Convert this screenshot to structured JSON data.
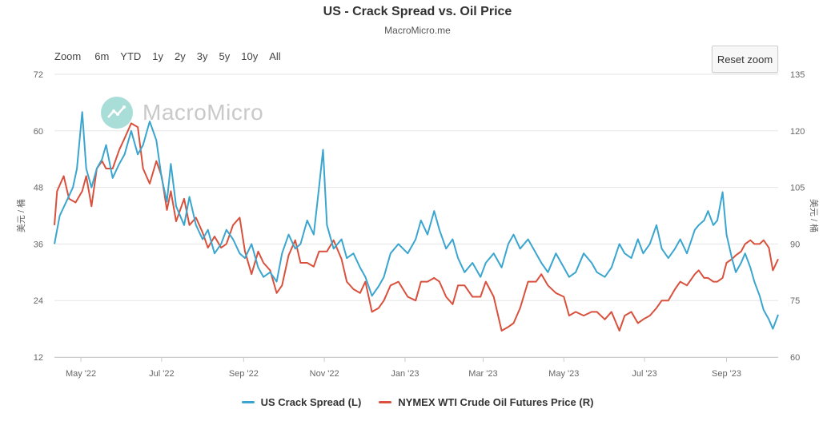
{
  "title": "US - Crack Spread vs. Oil Price",
  "subtitle": "MacroMicro.me",
  "watermark": "MacroMicro",
  "range_selector": [
    "Zoom",
    "6m",
    "YTD",
    "1y",
    "2y",
    "3y",
    "5y",
    "10y",
    "All"
  ],
  "reset_zoom_label": "Reset zoom",
  "colors": {
    "crack": "#3aa6cf",
    "wti": "#d9503c",
    "grid": "#e6e6e6"
  },
  "chart_data": {
    "type": "line",
    "title": "US - Crack Spread vs. Oil Price",
    "subtitle": "MacroMicro.me",
    "x_range": [
      "2022-04-11",
      "2023-10-10"
    ],
    "x_ticks": [
      {
        "date": "2022-05-01",
        "label": "May '22"
      },
      {
        "date": "2022-07-01",
        "label": "Jul '22"
      },
      {
        "date": "2022-09-01",
        "label": "Sep '22"
      },
      {
        "date": "2022-11-01",
        "label": "Nov '22"
      },
      {
        "date": "2023-01-01",
        "label": "Jan '23"
      },
      {
        "date": "2023-03-01",
        "label": "Mar '23"
      },
      {
        "date": "2023-05-01",
        "label": "May '23"
      },
      {
        "date": "2023-07-01",
        "label": "Jul '23"
      },
      {
        "date": "2023-09-01",
        "label": "Sep '23"
      }
    ],
    "y_left": {
      "label": "美元 / 桶",
      "min": 12,
      "max": 72,
      "ticks": [
        12,
        24,
        36,
        48,
        60,
        72
      ]
    },
    "y_right": {
      "label": "美元 / 桶",
      "min": 60,
      "max": 135,
      "ticks": [
        60,
        75,
        90,
        105,
        120,
        135
      ]
    },
    "grid": true,
    "legend_position": "bottom",
    "series": [
      {
        "name": "US Crack Spread (L)",
        "axis": "left",
        "color": "#3aa6cf",
        "points": [
          [
            "2022-04-11",
            36
          ],
          [
            "2022-04-15",
            42
          ],
          [
            "2022-04-20",
            45
          ],
          [
            "2022-04-25",
            48
          ],
          [
            "2022-04-28",
            52
          ],
          [
            "2022-05-02",
            64
          ],
          [
            "2022-05-05",
            52
          ],
          [
            "2022-05-09",
            48
          ],
          [
            "2022-05-13",
            52
          ],
          [
            "2022-05-17",
            54
          ],
          [
            "2022-05-20",
            57
          ],
          [
            "2022-05-25",
            50
          ],
          [
            "2022-05-30",
            53
          ],
          [
            "2022-06-03",
            55
          ],
          [
            "2022-06-08",
            60
          ],
          [
            "2022-06-13",
            55
          ],
          [
            "2022-06-17",
            57
          ],
          [
            "2022-06-22",
            62
          ],
          [
            "2022-06-27",
            58
          ],
          [
            "2022-07-01",
            50
          ],
          [
            "2022-07-05",
            45
          ],
          [
            "2022-07-08",
            53
          ],
          [
            "2022-07-12",
            44
          ],
          [
            "2022-07-18",
            40
          ],
          [
            "2022-07-22",
            46
          ],
          [
            "2022-07-27",
            40
          ],
          [
            "2022-08-01",
            37
          ],
          [
            "2022-08-05",
            39
          ],
          [
            "2022-08-10",
            34
          ],
          [
            "2022-08-15",
            36
          ],
          [
            "2022-08-19",
            39
          ],
          [
            "2022-08-24",
            37
          ],
          [
            "2022-08-29",
            34
          ],
          [
            "2022-09-02",
            33
          ],
          [
            "2022-09-07",
            36
          ],
          [
            "2022-09-12",
            31
          ],
          [
            "2022-09-16",
            29
          ],
          [
            "2022-09-21",
            30
          ],
          [
            "2022-09-26",
            28
          ],
          [
            "2022-09-30",
            34
          ],
          [
            "2022-10-05",
            38
          ],
          [
            "2022-10-10",
            35
          ],
          [
            "2022-10-14",
            36
          ],
          [
            "2022-10-19",
            41
          ],
          [
            "2022-10-24",
            38
          ],
          [
            "2022-10-28",
            48
          ],
          [
            "2022-10-31",
            56
          ],
          [
            "2022-11-03",
            40
          ],
          [
            "2022-11-08",
            35
          ],
          [
            "2022-11-14",
            37
          ],
          [
            "2022-11-18",
            33
          ],
          [
            "2022-11-23",
            34
          ],
          [
            "2022-11-28",
            31
          ],
          [
            "2022-12-02",
            29
          ],
          [
            "2022-12-07",
            25
          ],
          [
            "2022-12-12",
            27
          ],
          [
            "2022-12-16",
            29
          ],
          [
            "2022-12-21",
            34
          ],
          [
            "2022-12-27",
            36
          ],
          [
            "2023-01-03",
            34
          ],
          [
            "2023-01-09",
            37
          ],
          [
            "2023-01-13",
            41
          ],
          [
            "2023-01-18",
            38
          ],
          [
            "2023-01-23",
            43
          ],
          [
            "2023-01-27",
            39
          ],
          [
            "2023-02-01",
            35
          ],
          [
            "2023-02-06",
            37
          ],
          [
            "2023-02-10",
            33
          ],
          [
            "2023-02-15",
            30
          ],
          [
            "2023-02-21",
            32
          ],
          [
            "2023-02-27",
            29
          ],
          [
            "2023-03-03",
            32
          ],
          [
            "2023-03-09",
            34
          ],
          [
            "2023-03-15",
            31
          ],
          [
            "2023-03-20",
            36
          ],
          [
            "2023-03-24",
            38
          ],
          [
            "2023-03-29",
            35
          ],
          [
            "2023-04-04",
            37
          ],
          [
            "2023-04-10",
            34
          ],
          [
            "2023-04-14",
            32
          ],
          [
            "2023-04-19",
            30
          ],
          [
            "2023-04-25",
            34
          ],
          [
            "2023-05-01",
            31
          ],
          [
            "2023-05-05",
            29
          ],
          [
            "2023-05-10",
            30
          ],
          [
            "2023-05-16",
            34
          ],
          [
            "2023-05-22",
            32
          ],
          [
            "2023-05-26",
            30
          ],
          [
            "2023-06-01",
            29
          ],
          [
            "2023-06-06",
            31
          ],
          [
            "2023-06-12",
            36
          ],
          [
            "2023-06-16",
            34
          ],
          [
            "2023-06-21",
            33
          ],
          [
            "2023-06-26",
            37
          ],
          [
            "2023-06-30",
            34
          ],
          [
            "2023-07-05",
            36
          ],
          [
            "2023-07-10",
            40
          ],
          [
            "2023-07-14",
            35
          ],
          [
            "2023-07-19",
            33
          ],
          [
            "2023-07-24",
            35
          ],
          [
            "2023-07-28",
            37
          ],
          [
            "2023-08-02",
            34
          ],
          [
            "2023-08-08",
            39
          ],
          [
            "2023-08-11",
            40
          ],
          [
            "2023-08-15",
            41
          ],
          [
            "2023-08-18",
            43
          ],
          [
            "2023-08-22",
            40
          ],
          [
            "2023-08-25",
            41
          ],
          [
            "2023-08-29",
            47
          ],
          [
            "2023-09-01",
            38
          ],
          [
            "2023-09-05",
            33
          ],
          [
            "2023-09-08",
            30
          ],
          [
            "2023-09-12",
            32
          ],
          [
            "2023-09-15",
            34
          ],
          [
            "2023-09-19",
            31
          ],
          [
            "2023-09-22",
            28
          ],
          [
            "2023-09-26",
            25
          ],
          [
            "2023-09-29",
            22
          ],
          [
            "2023-10-03",
            20
          ],
          [
            "2023-10-06",
            18
          ],
          [
            "2023-10-10",
            21
          ]
        ]
      },
      {
        "name": "NYMEX WTI Crude Oil Futures Price (R)",
        "axis": "right",
        "color": "#d9503c",
        "points": [
          [
            "2022-04-11",
            95
          ],
          [
            "2022-04-13",
            104
          ],
          [
            "2022-04-18",
            108
          ],
          [
            "2022-04-22",
            102
          ],
          [
            "2022-04-27",
            101
          ],
          [
            "2022-05-02",
            104
          ],
          [
            "2022-05-05",
            108
          ],
          [
            "2022-05-09",
            100
          ],
          [
            "2022-05-13",
            110
          ],
          [
            "2022-05-17",
            112
          ],
          [
            "2022-05-20",
            110
          ],
          [
            "2022-05-25",
            110
          ],
          [
            "2022-05-30",
            115
          ],
          [
            "2022-06-03",
            118
          ],
          [
            "2022-06-08",
            122
          ],
          [
            "2022-06-13",
            121
          ],
          [
            "2022-06-17",
            110
          ],
          [
            "2022-06-22",
            106
          ],
          [
            "2022-06-27",
            112
          ],
          [
            "2022-07-01",
            108
          ],
          [
            "2022-07-05",
            99
          ],
          [
            "2022-07-08",
            104
          ],
          [
            "2022-07-12",
            96
          ],
          [
            "2022-07-18",
            102
          ],
          [
            "2022-07-22",
            95
          ],
          [
            "2022-07-27",
            97
          ],
          [
            "2022-08-01",
            93
          ],
          [
            "2022-08-05",
            89
          ],
          [
            "2022-08-10",
            92
          ],
          [
            "2022-08-15",
            89
          ],
          [
            "2022-08-19",
            90
          ],
          [
            "2022-08-24",
            95
          ],
          [
            "2022-08-29",
            97
          ],
          [
            "2022-09-02",
            88
          ],
          [
            "2022-09-07",
            82
          ],
          [
            "2022-09-12",
            88
          ],
          [
            "2022-09-16",
            85
          ],
          [
            "2022-09-21",
            83
          ],
          [
            "2022-09-26",
            77
          ],
          [
            "2022-09-30",
            79
          ],
          [
            "2022-10-05",
            87
          ],
          [
            "2022-10-10",
            91
          ],
          [
            "2022-10-14",
            85
          ],
          [
            "2022-10-19",
            85
          ],
          [
            "2022-10-24",
            84
          ],
          [
            "2022-10-28",
            88
          ],
          [
            "2022-11-03",
            88
          ],
          [
            "2022-11-08",
            91
          ],
          [
            "2022-11-14",
            86
          ],
          [
            "2022-11-18",
            80
          ],
          [
            "2022-11-23",
            78
          ],
          [
            "2022-11-28",
            77
          ],
          [
            "2022-12-02",
            80
          ],
          [
            "2022-12-07",
            72
          ],
          [
            "2022-12-12",
            73
          ],
          [
            "2022-12-16",
            75
          ],
          [
            "2022-12-21",
            79
          ],
          [
            "2022-12-27",
            80
          ],
          [
            "2023-01-03",
            76
          ],
          [
            "2023-01-09",
            75
          ],
          [
            "2023-01-13",
            80
          ],
          [
            "2023-01-18",
            80
          ],
          [
            "2023-01-23",
            81
          ],
          [
            "2023-01-27",
            80
          ],
          [
            "2023-02-01",
            76
          ],
          [
            "2023-02-06",
            74
          ],
          [
            "2023-02-10",
            79
          ],
          [
            "2023-02-15",
            79
          ],
          [
            "2023-02-21",
            76
          ],
          [
            "2023-02-27",
            76
          ],
          [
            "2023-03-03",
            80
          ],
          [
            "2023-03-09",
            76
          ],
          [
            "2023-03-15",
            67
          ],
          [
            "2023-03-20",
            68
          ],
          [
            "2023-03-24",
            69
          ],
          [
            "2023-03-29",
            73
          ],
          [
            "2023-04-04",
            80
          ],
          [
            "2023-04-10",
            80
          ],
          [
            "2023-04-14",
            82
          ],
          [
            "2023-04-19",
            79
          ],
          [
            "2023-04-25",
            77
          ],
          [
            "2023-05-01",
            76
          ],
          [
            "2023-05-05",
            71
          ],
          [
            "2023-05-10",
            72
          ],
          [
            "2023-05-16",
            71
          ],
          [
            "2023-05-22",
            72
          ],
          [
            "2023-05-26",
            72
          ],
          [
            "2023-06-01",
            70
          ],
          [
            "2023-06-06",
            72
          ],
          [
            "2023-06-12",
            67
          ],
          [
            "2023-06-16",
            71
          ],
          [
            "2023-06-21",
            72
          ],
          [
            "2023-06-26",
            69
          ],
          [
            "2023-06-30",
            70
          ],
          [
            "2023-07-05",
            71
          ],
          [
            "2023-07-10",
            73
          ],
          [
            "2023-07-14",
            75
          ],
          [
            "2023-07-19",
            75
          ],
          [
            "2023-07-24",
            78
          ],
          [
            "2023-07-28",
            80
          ],
          [
            "2023-08-02",
            79
          ],
          [
            "2023-08-08",
            82
          ],
          [
            "2023-08-11",
            83
          ],
          [
            "2023-08-15",
            81
          ],
          [
            "2023-08-18",
            81
          ],
          [
            "2023-08-22",
            80
          ],
          [
            "2023-08-25",
            80
          ],
          [
            "2023-08-29",
            81
          ],
          [
            "2023-09-01",
            85
          ],
          [
            "2023-09-05",
            86
          ],
          [
            "2023-09-08",
            87
          ],
          [
            "2023-09-12",
            88
          ],
          [
            "2023-09-15",
            90
          ],
          [
            "2023-09-19",
            91
          ],
          [
            "2023-09-22",
            90
          ],
          [
            "2023-09-26",
            90
          ],
          [
            "2023-09-29",
            91
          ],
          [
            "2023-10-03",
            89
          ],
          [
            "2023-10-06",
            83
          ],
          [
            "2023-10-10",
            86
          ]
        ]
      }
    ]
  }
}
